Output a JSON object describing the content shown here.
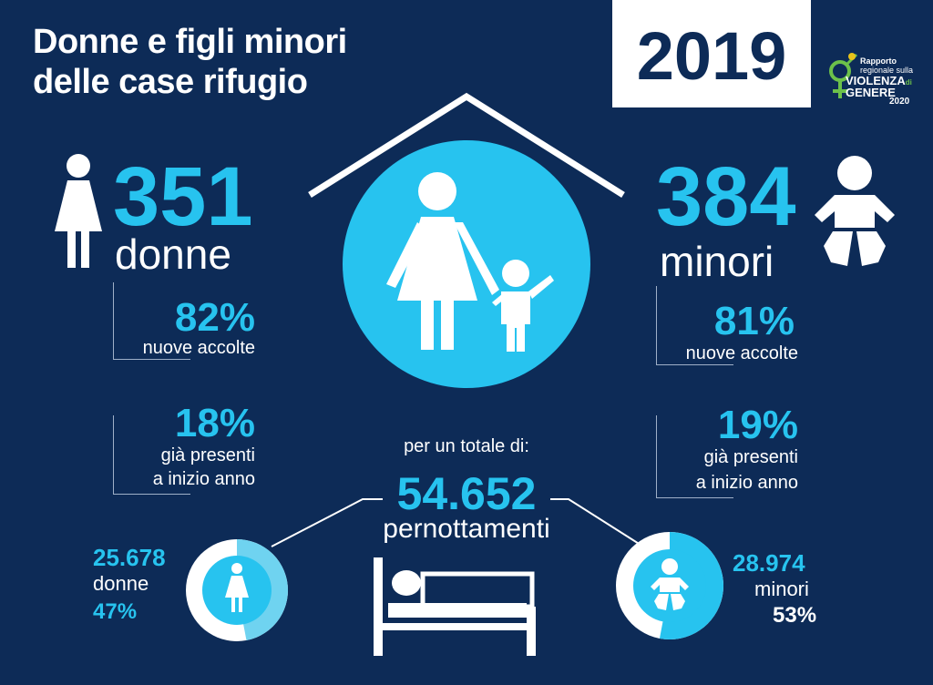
{
  "title_line1": "Donne e figli minori",
  "title_line2": "delle case rifugio",
  "year": "2019",
  "logo": {
    "line1": "Rapporto",
    "line2": "regionale sulla",
    "line3": "VIOLENZA",
    "line3b": "di",
    "line4": "GENERE",
    "line5": "2020"
  },
  "women": {
    "count": "351",
    "label": "donne",
    "new_pct": "82%",
    "new_label": "nuove accolte",
    "present_pct": "18%",
    "present_label1": "già presenti",
    "present_label2": "a inizio anno"
  },
  "minors": {
    "count": "384",
    "label": "minori",
    "new_pct": "81%",
    "new_label": "nuove accolte",
    "present_pct": "19%",
    "present_label1": "già presenti",
    "present_label2": "a inizio anno"
  },
  "total": {
    "intro": "per un totale di:",
    "value": "54.652",
    "label": "pernottamenti"
  },
  "nights_women": {
    "value": "25.678",
    "label": "donne",
    "pct": "47%",
    "share": 0.47
  },
  "nights_minors": {
    "value": "28.974",
    "label": "minori",
    "pct": "53%",
    "share": 0.53
  },
  "colors": {
    "background": "#0d2b57",
    "accent": "#27c3ef",
    "light": "#6fd3f0",
    "white": "#ffffff"
  }
}
